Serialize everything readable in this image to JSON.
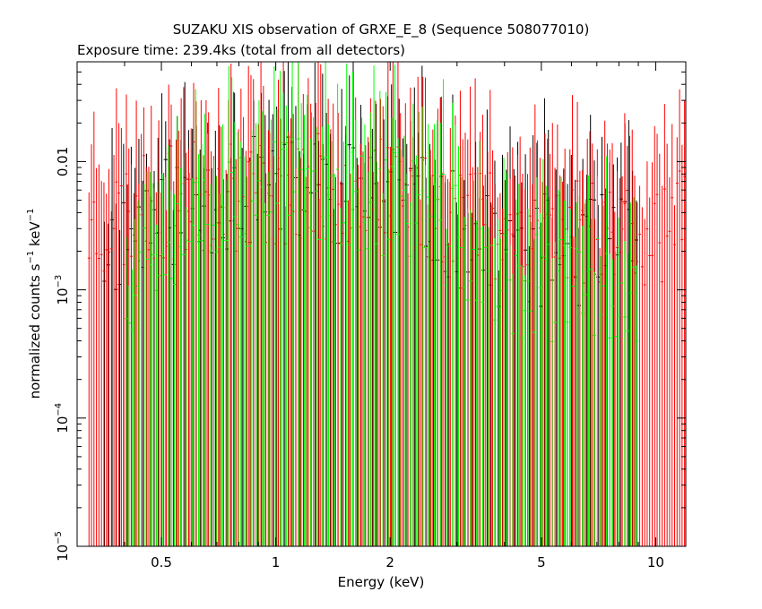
{
  "chart_data": {
    "type": "scatter",
    "title": "SUZAKU XIS observation of GRXE_E_8 (Sequence 508077010)",
    "subtitle": "Exposure time: 239.4ks (total from all detectors)",
    "xlabel": "Energy (keV)",
    "ylabel_main": "normalized counts s",
    "ylabel_sup1": "−1",
    "ylabel_mid": " keV",
    "ylabel_sup2": "−1",
    "x_scale": "log",
    "y_scale": "log",
    "xlim": [
      0.3,
      12
    ],
    "ylim": [
      1e-05,
      0.06
    ],
    "x_ticks": [
      {
        "value": 0.5,
        "label": "0.5"
      },
      {
        "value": 1,
        "label": "1"
      },
      {
        "value": 2,
        "label": "2"
      },
      {
        "value": 5,
        "label": "5"
      },
      {
        "value": 10,
        "label": "10"
      }
    ],
    "y_ticks": [
      {
        "value": 0.01,
        "base": "0.01",
        "exp": ""
      },
      {
        "value": 0.001,
        "base": "10",
        "exp": "−3"
      },
      {
        "value": 0.0001,
        "base": "10",
        "exp": "−4"
      },
      {
        "value": 1e-05,
        "base": "10",
        "exp": "−5"
      }
    ],
    "grid": false,
    "series": [
      {
        "color": "#000000",
        "x_range": [
          0.35,
          9.0
        ],
        "n_bins": 140,
        "level_low": 0.002,
        "level_high": 0.006,
        "seed": 11
      },
      {
        "color": "#ff0000",
        "x_range": [
          0.32,
          12.0
        ],
        "n_bins": 240,
        "level_low": 0.003,
        "level_high": 0.006,
        "seed": 23
      },
      {
        "color": "#00ff00",
        "x_range": [
          0.4,
          9.0
        ],
        "n_bins": 170,
        "level_low": 0.001,
        "level_high": 0.006,
        "seed": 37
      }
    ]
  }
}
